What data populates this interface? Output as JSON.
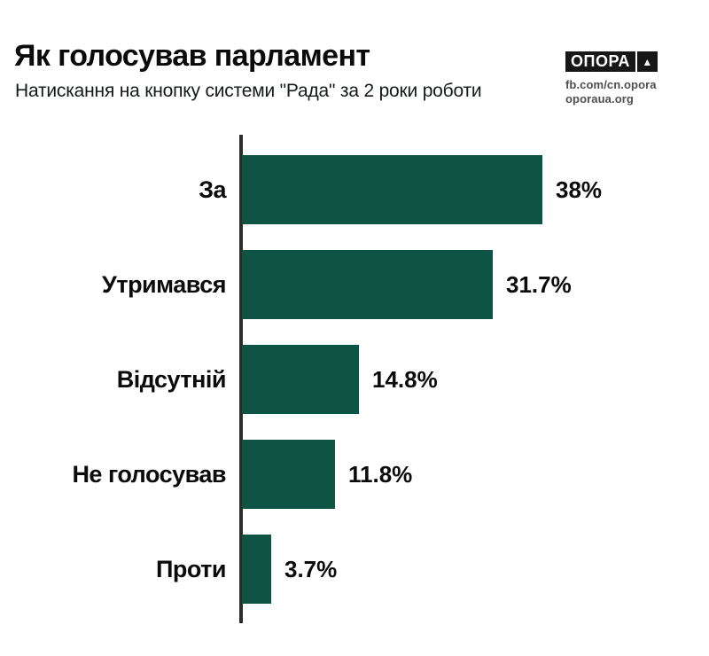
{
  "title": "Як голосував парламент",
  "subtitle": "Натискання на кнопку системи \"Рада\" за 2 роки роботи",
  "logo": {
    "brand": "ОПОРА",
    "triangle_icon": "▲",
    "links": [
      "fb.com/cn.opora",
      "oporaua.org"
    ]
  },
  "chart_data": {
    "type": "bar",
    "orientation": "horizontal",
    "title": "Як голосував парламент",
    "subtitle": "Натискання на кнопку системи \"Рада\" за 2 роки роботи",
    "categories": [
      "За",
      "Утримався",
      "Відсутній",
      "Не голосував",
      "Проти"
    ],
    "values": [
      38,
      31.7,
      14.8,
      11.8,
      3.7
    ],
    "value_labels": [
      "38%",
      "31.7%",
      "14.8%",
      "11.8%",
      "3.7%"
    ],
    "unit": "%",
    "xlim": [
      0,
      57
    ],
    "grid": false,
    "legend": false,
    "bar_color": "#0d5444",
    "axis_color": "#2d2d28",
    "label_color": "#0b0b0b"
  }
}
